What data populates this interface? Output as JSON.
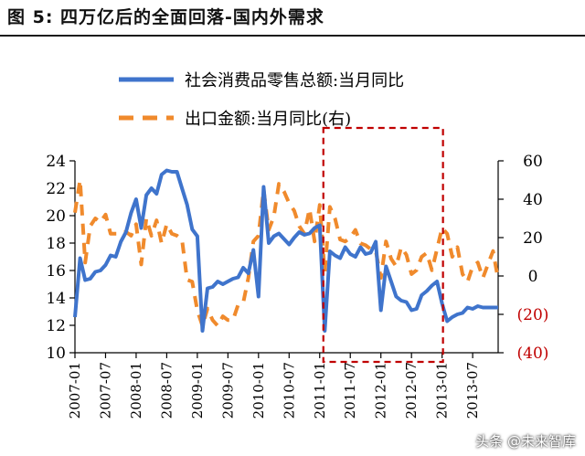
{
  "figure_title": "图 5: 四万亿后的全面回落-国内外需求",
  "watermark": "头条 @未来智库",
  "colors": {
    "retail_line": "#3f74cc",
    "export_line": "#f08a2c",
    "highlight_box": "#c00000",
    "right_negative_text": "#c00000",
    "axis": "#000000"
  },
  "chart_data": {
    "type": "line",
    "title": "",
    "x_labels": [
      "2007-01",
      "2007-07",
      "2008-01",
      "2008-07",
      "2009-01",
      "2009-07",
      "2010-01",
      "2010-07",
      "2011-01",
      "2011-07",
      "2012-01",
      "2012-07",
      "2013-01",
      "2013-07"
    ],
    "x_range": [
      "2007-01",
      "2013-12"
    ],
    "left_axis": {
      "ylim": [
        10,
        24
      ],
      "ticks": [
        "10",
        "12",
        "14",
        "16",
        "18",
        "20",
        "22",
        "24"
      ]
    },
    "right_axis": {
      "ylim": [
        -40,
        60
      ],
      "tick_values": [
        -40,
        -20,
        0,
        20,
        40,
        60
      ],
      "ticks": [
        "(40)",
        "(20)",
        "0",
        "20",
        "40",
        "60"
      ]
    },
    "legend_placement": "top-center",
    "grid": false,
    "highlight": {
      "from": "2011-01",
      "to": "2013-01",
      "style": "red dashed rectangle"
    },
    "series": [
      {
        "name": "社会消费品零售总额:当月同比",
        "axis": "left",
        "style": "solid",
        "x": [
          "2007-01",
          "2007-02",
          "2007-03",
          "2007-04",
          "2007-05",
          "2007-06",
          "2007-07",
          "2007-08",
          "2007-09",
          "2007-10",
          "2007-11",
          "2007-12",
          "2008-01",
          "2008-02",
          "2008-03",
          "2008-04",
          "2008-05",
          "2008-06",
          "2008-07",
          "2008-08",
          "2008-09",
          "2008-10",
          "2008-11",
          "2008-12",
          "2009-01",
          "2009-02",
          "2009-03",
          "2009-04",
          "2009-05",
          "2009-06",
          "2009-07",
          "2009-08",
          "2009-09",
          "2009-10",
          "2009-11",
          "2009-12",
          "2010-01",
          "2010-02",
          "2010-03",
          "2010-04",
          "2010-05",
          "2010-06",
          "2010-07",
          "2010-08",
          "2010-09",
          "2010-10",
          "2010-11",
          "2010-12",
          "2011-01",
          "2011-02",
          "2011-03",
          "2011-04",
          "2011-05",
          "2011-06",
          "2011-07",
          "2011-08",
          "2011-09",
          "2011-10",
          "2011-11",
          "2011-12",
          "2012-01",
          "2012-02",
          "2012-03",
          "2012-04",
          "2012-05",
          "2012-06",
          "2012-07",
          "2012-08",
          "2012-09",
          "2012-10",
          "2012-11",
          "2012-12",
          "2013-01",
          "2013-02",
          "2013-03",
          "2013-04",
          "2013-05",
          "2013-06",
          "2013-07",
          "2013-08",
          "2013-09",
          "2013-10",
          "2013-11",
          "2013-12"
        ],
        "values": [
          12.6,
          16.9,
          15.3,
          15.4,
          15.9,
          16.0,
          16.4,
          17.1,
          17.0,
          18.1,
          18.8,
          20.2,
          21.2,
          19.1,
          21.5,
          22.0,
          21.6,
          23.0,
          23.3,
          23.2,
          23.2,
          22.0,
          20.8,
          19.0,
          18.5,
          11.6,
          14.7,
          14.8,
          15.2,
          15.0,
          15.2,
          15.4,
          15.5,
          16.2,
          15.8,
          17.5,
          14.1,
          22.1,
          18.0,
          18.5,
          18.7,
          18.3,
          17.9,
          18.4,
          18.8,
          18.6,
          18.7,
          19.1,
          19.3,
          11.6,
          17.4,
          17.1,
          16.9,
          17.7,
          17.2,
          17.0,
          17.7,
          17.2,
          17.3,
          18.1,
          13.1,
          16.3,
          15.2,
          14.1,
          13.8,
          13.7,
          13.1,
          13.2,
          14.2,
          14.5,
          14.9,
          15.2,
          13.6,
          12.3,
          12.6,
          12.8,
          12.9,
          13.3,
          13.2,
          13.4,
          13.3,
          13.3,
          13.3,
          13.3
        ]
      },
      {
        "name": "出口金额:当月同比(右)",
        "axis": "right",
        "style": "dashed",
        "x": [
          "2007-01",
          "2007-02",
          "2007-03",
          "2007-04",
          "2007-05",
          "2007-06",
          "2007-07",
          "2007-08",
          "2007-09",
          "2007-10",
          "2007-11",
          "2007-12",
          "2008-01",
          "2008-02",
          "2008-03",
          "2008-04",
          "2008-05",
          "2008-06",
          "2008-07",
          "2008-08",
          "2008-09",
          "2008-10",
          "2008-11",
          "2008-12",
          "2009-01",
          "2009-02",
          "2009-03",
          "2009-04",
          "2009-05",
          "2009-06",
          "2009-07",
          "2009-08",
          "2009-09",
          "2009-10",
          "2009-11",
          "2009-12",
          "2010-01",
          "2010-02",
          "2010-03",
          "2010-04",
          "2010-05",
          "2010-06",
          "2010-07",
          "2010-08",
          "2010-09",
          "2010-10",
          "2010-11",
          "2010-12",
          "2011-01",
          "2011-02",
          "2011-03",
          "2011-04",
          "2011-05",
          "2011-06",
          "2011-07",
          "2011-08",
          "2011-09",
          "2011-10",
          "2011-11",
          "2011-12",
          "2012-01",
          "2012-02",
          "2012-03",
          "2012-04",
          "2012-05",
          "2012-06",
          "2012-07",
          "2012-08",
          "2012-09",
          "2012-10",
          "2012-11",
          "2012-12",
          "2013-01",
          "2013-02",
          "2013-03",
          "2013-04",
          "2013-05",
          "2013-06",
          "2013-07",
          "2013-08",
          "2013-09",
          "2013-10",
          "2013-11",
          "2013-12"
        ],
        "values": [
          33,
          50,
          7,
          26,
          30,
          28,
          32,
          22,
          22,
          22,
          23,
          21,
          27,
          6,
          30,
          21,
          29,
          17,
          27,
          22,
          21,
          19,
          -2,
          -3,
          -18,
          -26,
          -17,
          -23,
          -26,
          -21,
          -23,
          -23,
          -15,
          -14,
          -1,
          18,
          21,
          45,
          24,
          31,
          48,
          44,
          38,
          34,
          26,
          22,
          35,
          18,
          37,
          2,
          36,
          30,
          19,
          18,
          20,
          24,
          17,
          16,
          14,
          13,
          -1,
          18,
          9,
          5,
          15,
          11,
          1,
          3,
          10,
          12,
          3,
          14,
          25,
          22,
          10,
          15,
          1,
          -3,
          5,
          7,
          -1,
          6,
          13,
          -2
        ]
      }
    ]
  },
  "legend": {
    "retail_label": "社会消费品零售总额:当月同比",
    "export_label": "出口金额:当月同比(右)"
  }
}
